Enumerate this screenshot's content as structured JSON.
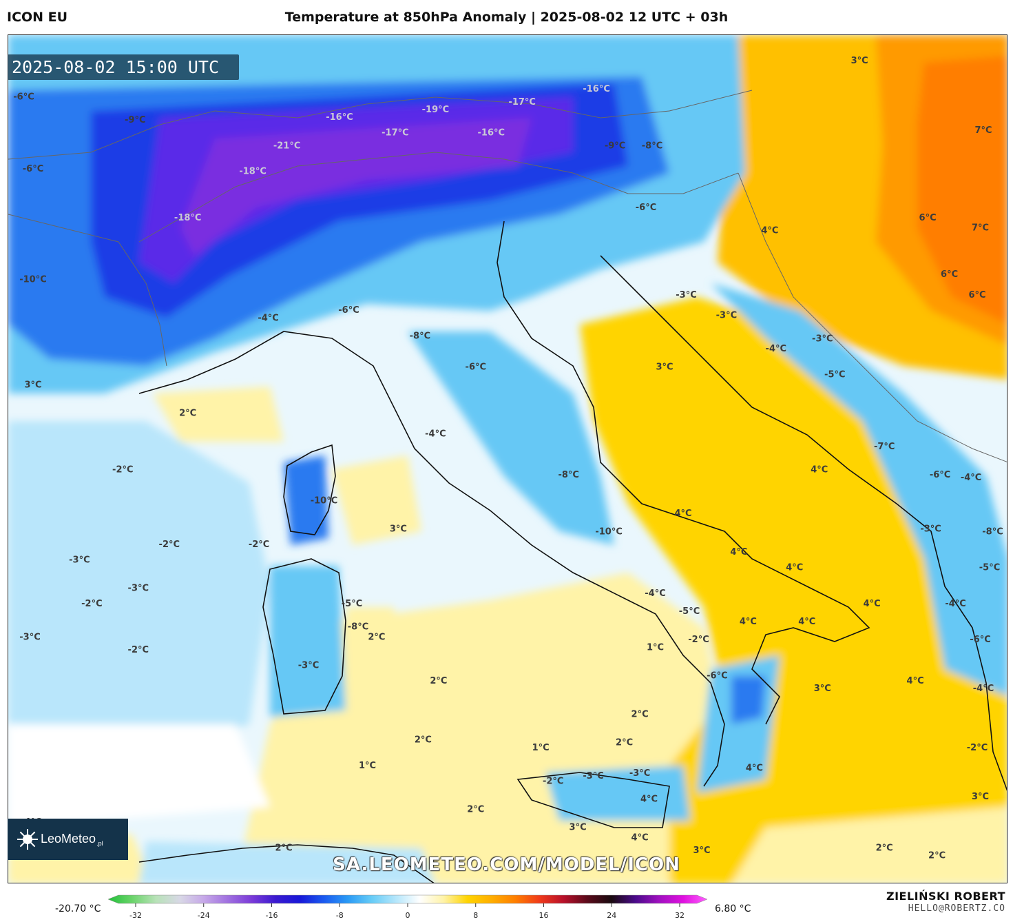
{
  "header": {
    "model": "ICON EU",
    "title": "Temperature at 850hPa Anomaly | 2025-08-02 12 UTC + 03h"
  },
  "timestamp": "2025-08-02 15:00 UTC",
  "watermark": "SA.LEOMETEO.COM/MODEL/ICON",
  "logo": {
    "brand": "LeoMeteo",
    "tld": ".pl"
  },
  "credit": {
    "name": "ZIELIŃSKI ROBERT",
    "email": "HELLO@ROBERTZ.CO"
  },
  "colorbar": {
    "min_label": "-20.70 °C",
    "max_label": "6.80 °C",
    "ticks": [
      "-32",
      "-24",
      "-16",
      "-8",
      "0",
      "8",
      "16",
      "24",
      "32"
    ],
    "colors": [
      "#22c03a",
      "#6ad46a",
      "#b8e2b8",
      "#d8d8e6",
      "#c6a8e8",
      "#a070e0",
      "#7a3ad8",
      "#3a1ad0",
      "#1818d8",
      "#1a5af0",
      "#2a9af5",
      "#66ccf7",
      "#b4e6fb",
      "#ffffff",
      "#fff3a8",
      "#ffd400",
      "#ffae00",
      "#ff7e00",
      "#f03a1a",
      "#b8102a",
      "#5a0a1a",
      "#1a0a10",
      "#4a0a8a",
      "#a010c0",
      "#e010e0",
      "#ff60ff"
    ]
  },
  "palette": {
    "deep-purple": "#7a2ee0",
    "purple": "#5a2ae8",
    "blue": "#1e3ce6",
    "mid-blue": "#2a7af0",
    "light-blue": "#66c8f5",
    "pale-blue": "#b9e6fb",
    "near-white": "#eaf7fd",
    "white": "#ffffff",
    "pale-yellow": "#fff3a8",
    "yellow": "#ffd400",
    "deep-yellow": "#ffc000",
    "orange": "#ff9a00",
    "dark-orange": "#ff7e00",
    "land-line": "#111111",
    "border-line": "#555555"
  },
  "labels": [
    {
      "text": "-6°C",
      "lon": -1.8,
      "lat": 49.0
    },
    {
      "text": "-9°C",
      "lon": 1.8,
      "lat": 48.1
    },
    {
      "text": "-21°C",
      "lon": 6.7,
      "lat": 47.1
    },
    {
      "text": "-16°C",
      "lon": 8.4,
      "lat": 48.2
    },
    {
      "text": "-17°C",
      "lon": 10.2,
      "lat": 47.6
    },
    {
      "text": "-19°C",
      "lon": 11.5,
      "lat": 48.5
    },
    {
      "text": "-16°C",
      "lon": 13.3,
      "lat": 47.6
    },
    {
      "text": "-17°C",
      "lon": 14.3,
      "lat": 48.8
    },
    {
      "text": "-16°C",
      "lon": 16.7,
      "lat": 49.3
    },
    {
      "text": "-9°C",
      "lon": 17.3,
      "lat": 47.1
    },
    {
      "text": "-8°C",
      "lon": 18.5,
      "lat": 47.1
    },
    {
      "text": "3°C",
      "lon": 25.2,
      "lat": 50.4
    },
    {
      "text": "7°C",
      "lon": 29.2,
      "lat": 47.7
    },
    {
      "text": "-6°C",
      "lon": -1.5,
      "lat": 46.2
    },
    {
      "text": "-18°C",
      "lon": 5.6,
      "lat": 46.1
    },
    {
      "text": "-6°C",
      "lon": 18.3,
      "lat": 44.7
    },
    {
      "text": "4°C",
      "lon": 22.3,
      "lat": 43.8
    },
    {
      "text": "6°C",
      "lon": 27.4,
      "lat": 44.3
    },
    {
      "text": "7°C",
      "lon": 29.1,
      "lat": 43.9
    },
    {
      "text": "-18°C",
      "lon": 3.5,
      "lat": 44.3
    },
    {
      "text": "-10°C",
      "lon": -1.5,
      "lat": 41.9
    },
    {
      "text": "-6°C",
      "lon": 8.7,
      "lat": 40.7
    },
    {
      "text": "-4°C",
      "lon": 6.1,
      "lat": 40.4
    },
    {
      "text": "-8°C",
      "lon": 11.0,
      "lat": 39.7
    },
    {
      "text": "-3°C",
      "lon": 19.6,
      "lat": 41.3
    },
    {
      "text": "-3°C",
      "lon": 20.9,
      "lat": 40.5
    },
    {
      "text": "-3°C",
      "lon": 24.0,
      "lat": 39.6
    },
    {
      "text": "-4°C",
      "lon": 22.5,
      "lat": 39.2
    },
    {
      "text": "6°C",
      "lon": 28.1,
      "lat": 42.1
    },
    {
      "text": "6°C",
      "lon": 29.0,
      "lat": 41.3
    },
    {
      "text": "3°C",
      "lon": -1.5,
      "lat": 37.8
    },
    {
      "text": "2°C",
      "lon": 3.5,
      "lat": 36.7
    },
    {
      "text": "-6°C",
      "lon": 12.8,
      "lat": 38.5
    },
    {
      "text": "3°C",
      "lon": 18.9,
      "lat": 38.5
    },
    {
      "text": "-5°C",
      "lon": 24.4,
      "lat": 38.2
    },
    {
      "text": "-4°C",
      "lon": 11.5,
      "lat": 35.9
    },
    {
      "text": "-7°C",
      "lon": 26.0,
      "lat": 35.4
    },
    {
      "text": "-2°C",
      "lon": 1.4,
      "lat": 34.5
    },
    {
      "text": "4°C",
      "lon": 23.9,
      "lat": 34.5
    },
    {
      "text": "-8°C",
      "lon": 15.8,
      "lat": 34.3
    },
    {
      "text": "-6°C",
      "lon": 27.8,
      "lat": 34.3
    },
    {
      "text": "-4°C",
      "lon": 28.8,
      "lat": 34.2
    },
    {
      "text": "-10°C",
      "lon": 7.9,
      "lat": 33.3
    },
    {
      "text": "4°C",
      "lon": 19.5,
      "lat": 32.8
    },
    {
      "text": "-10°C",
      "lon": 17.1,
      "lat": 32.1
    },
    {
      "text": "3°C",
      "lon": 10.3,
      "lat": 32.2
    },
    {
      "text": "-3°C",
      "lon": 27.5,
      "lat": 32.2
    },
    {
      "text": "-8°C",
      "lon": 29.5,
      "lat": 32.1
    },
    {
      "text": "-2°C",
      "lon": 2.9,
      "lat": 31.6
    },
    {
      "text": "-2°C",
      "lon": 5.8,
      "lat": 31.6
    },
    {
      "text": "4°C",
      "lon": 21.3,
      "lat": 31.3
    },
    {
      "text": "4°C",
      "lon": 23.1,
      "lat": 30.7
    },
    {
      "text": "-5°C",
      "lon": 29.4,
      "lat": 30.7
    },
    {
      "text": "-3°C",
      "lon": 0.0,
      "lat": 31.0
    },
    {
      "text": "-3°C",
      "lon": 1.9,
      "lat": 29.9
    },
    {
      "text": "-2°C",
      "lon": 0.4,
      "lat": 29.3
    },
    {
      "text": "-5°C",
      "lon": 8.8,
      "lat": 29.3
    },
    {
      "text": "-4°C",
      "lon": 18.6,
      "lat": 29.7
    },
    {
      "text": "-5°C",
      "lon": 19.7,
      "lat": 29.0
    },
    {
      "text": "4°C",
      "lon": 25.6,
      "lat": 29.3
    },
    {
      "text": "-4°C",
      "lon": 28.3,
      "lat": 29.3
    },
    {
      "text": "-8°C",
      "lon": 9.0,
      "lat": 28.4
    },
    {
      "text": "4°C",
      "lon": 21.6,
      "lat": 28.6
    },
    {
      "text": "4°C",
      "lon": 23.5,
      "lat": 28.6
    },
    {
      "text": "-2°C",
      "lon": 20.0,
      "lat": 27.9
    },
    {
      "text": "2°C",
      "lon": 9.6,
      "lat": 28.0
    },
    {
      "text": "1°C",
      "lon": 18.6,
      "lat": 27.6
    },
    {
      "text": "-2°C",
      "lon": 1.9,
      "lat": 27.5
    },
    {
      "text": "-3°C",
      "lon": -1.6,
      "lat": 28.0
    },
    {
      "text": "-6°C",
      "lon": 20.6,
      "lat": 26.5
    },
    {
      "text": "-6°C",
      "lon": 29.1,
      "lat": 27.9
    },
    {
      "text": "-3°C",
      "lon": 7.4,
      "lat": 26.9
    },
    {
      "text": "2°C",
      "lon": 11.6,
      "lat": 26.3
    },
    {
      "text": "3°C",
      "lon": 24.0,
      "lat": 26.0
    },
    {
      "text": "4°C",
      "lon": 27.0,
      "lat": 26.3
    },
    {
      "text": "-4°C",
      "lon": 29.2,
      "lat": 26.0
    },
    {
      "text": "2°C",
      "lon": 18.1,
      "lat": 25.0
    },
    {
      "text": "2°C",
      "lon": 11.1,
      "lat": 24.0
    },
    {
      "text": "1°C",
      "lon": 14.9,
      "lat": 23.7
    },
    {
      "text": "2°C",
      "lon": 17.6,
      "lat": 23.9
    },
    {
      "text": "-2°C",
      "lon": 29.0,
      "lat": 23.7
    },
    {
      "text": "1°C",
      "lon": 9.3,
      "lat": 23.0
    },
    {
      "text": "-2°C",
      "lon": 15.3,
      "lat": 22.4
    },
    {
      "text": "-3°C",
      "lon": 16.6,
      "lat": 22.6
    },
    {
      "text": "-3°C",
      "lon": 18.1,
      "lat": 22.7
    },
    {
      "text": "4°C",
      "lon": 21.8,
      "lat": 22.9
    },
    {
      "text": "4°C",
      "lon": 18.4,
      "lat": 21.7
    },
    {
      "text": "3°C",
      "lon": 29.1,
      "lat": 21.8
    },
    {
      "text": "2°C",
      "lon": 12.8,
      "lat": 21.3
    },
    {
      "text": "3°C",
      "lon": 16.1,
      "lat": 20.6
    },
    {
      "text": "4°C",
      "lon": -1.5,
      "lat": 20.8
    },
    {
      "text": "4°C",
      "lon": 18.1,
      "lat": 20.2
    },
    {
      "text": "2°C",
      "lon": 6.6,
      "lat": 19.8
    },
    {
      "text": "3°C",
      "lon": 20.1,
      "lat": 19.7
    },
    {
      "text": "2°C",
      "lon": 26.0,
      "lat": 19.8
    },
    {
      "text": "2°C",
      "lon": 27.7,
      "lat": 19.5
    }
  ]
}
